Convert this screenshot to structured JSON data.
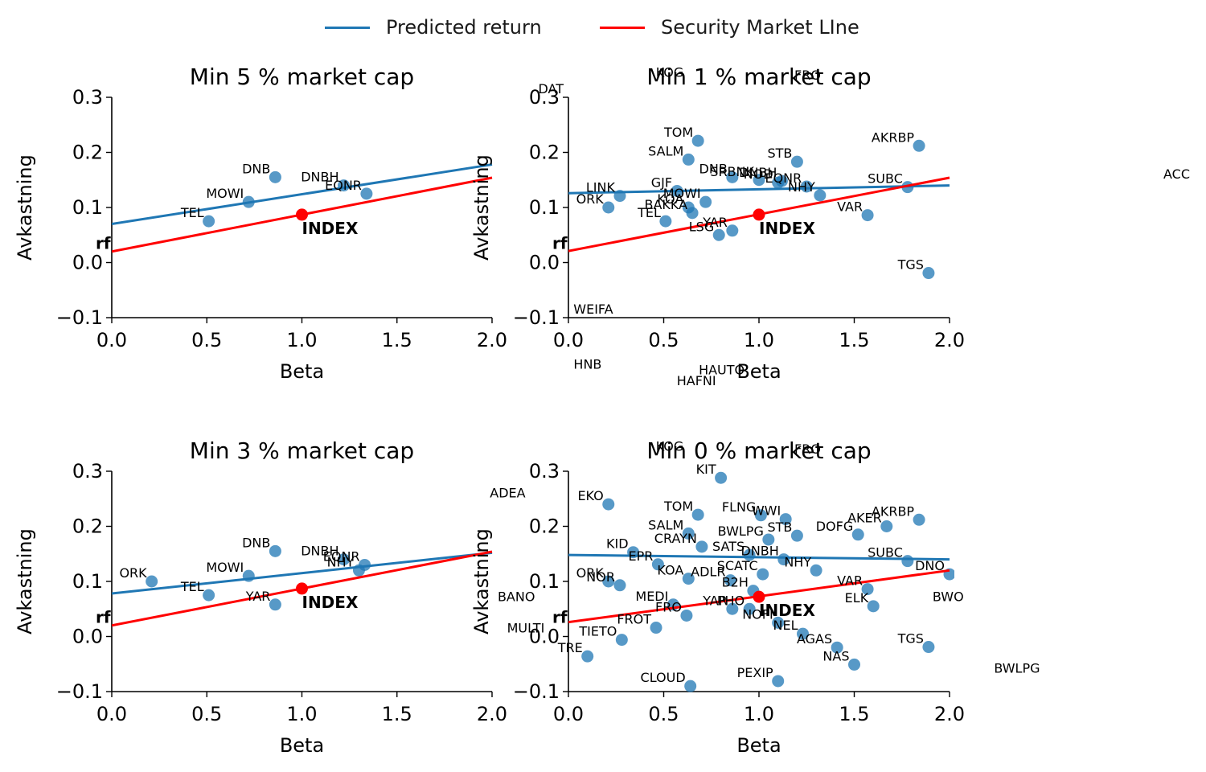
{
  "legend": {
    "predicted_label": "Predicted return",
    "predicted_color": "#1f77b4",
    "sml_label": "Security Market LIne",
    "sml_color": "#ff0000"
  },
  "chart_data": [
    {
      "type": "scatter",
      "title": "Min 5 % market cap",
      "xlabel": "Beta",
      "ylabel": "Avkastning",
      "xlim": [
        0,
        2
      ],
      "ylim": [
        -0.1,
        0.3
      ],
      "xticks": [
        "0.0",
        "0.5",
        "1.0",
        "1.5",
        "2.0"
      ],
      "yticks": [
        "−0.1",
        "0.0",
        "0.1",
        "0.2",
        "0.3"
      ],
      "grid": false,
      "rf_label": "rf",
      "rf_value": 0.035,
      "index": {
        "label": "INDEX",
        "beta": 1.0,
        "ret": 0.087
      },
      "predicted_line": [
        0.07,
        0.178
      ],
      "sml_line": [
        0.02,
        0.154
      ],
      "points": [
        {
          "name": "DNB",
          "beta": 0.86,
          "ret": 0.155
        },
        {
          "name": "MOWI",
          "beta": 0.72,
          "ret": 0.11
        },
        {
          "name": "TEL",
          "beta": 0.51,
          "ret": 0.075
        },
        {
          "name": "DNBH",
          "beta": 1.22,
          "ret": 0.14
        },
        {
          "name": "EQNR",
          "beta": 1.34,
          "ret": 0.125
        }
      ]
    },
    {
      "type": "scatter",
      "title": "Min 1 % market cap",
      "xlabel": "Beta",
      "ylabel": "Avkastning",
      "xlim": [
        0,
        2
      ],
      "ylim": [
        -0.1,
        0.3
      ],
      "xticks": [
        "0.0",
        "0.5",
        "1.0",
        "1.5",
        "2.0"
      ],
      "yticks": [
        "−0.1",
        "0.0",
        "0.1",
        "0.2",
        "0.3"
      ],
      "grid": false,
      "rf_label": "rf",
      "rf_value": 0.035,
      "index": {
        "label": "INDEX",
        "beta": 1.0,
        "ret": 0.087
      },
      "predicted_line": [
        0.126,
        0.14
      ],
      "sml_line": [
        0.021,
        0.154
      ],
      "points": [
        {
          "name": "TOM",
          "beta": 0.68,
          "ret": 0.221
        },
        {
          "name": "SALM",
          "beta": 0.63,
          "ret": 0.187
        },
        {
          "name": "STB",
          "beta": 1.2,
          "ret": 0.183
        },
        {
          "name": "AKRBP",
          "beta": 1.84,
          "ret": 0.212
        },
        {
          "name": "DNB",
          "beta": 0.86,
          "ret": 0.155
        },
        {
          "name": "SRBNK",
          "beta": 1.0,
          "ret": 0.15
        },
        {
          "name": "DNBH",
          "beta": 1.12,
          "ret": 0.148
        },
        {
          "name": "NOD",
          "beta": 1.1,
          "ret": 0.145
        },
        {
          "name": "EQNR",
          "beta": 1.25,
          "ret": 0.138
        },
        {
          "name": "NHY",
          "beta": 1.32,
          "ret": 0.122
        },
        {
          "name": "SUBC",
          "beta": 1.78,
          "ret": 0.137
        },
        {
          "name": "GJF",
          "beta": 0.57,
          "ret": 0.13
        },
        {
          "name": "LINK",
          "beta": 0.27,
          "ret": 0.121
        },
        {
          "name": "MOWI",
          "beta": 0.72,
          "ret": 0.11
        },
        {
          "name": "ORK",
          "beta": 0.21,
          "ret": 0.1
        },
        {
          "name": "KOA",
          "beta": 0.63,
          "ret": 0.1
        },
        {
          "name": "BAKKA",
          "beta": 0.65,
          "ret": 0.09
        },
        {
          "name": "TEL",
          "beta": 0.51,
          "ret": 0.075
        },
        {
          "name": "YAR",
          "beta": 0.86,
          "ret": 0.058
        },
        {
          "name": "LSG",
          "beta": 0.79,
          "ret": 0.05
        },
        {
          "name": "VAR",
          "beta": 1.57,
          "ret": 0.086
        },
        {
          "name": "TGS",
          "beta": 1.89,
          "ret": -0.019
        }
      ],
      "clipped_labels": [
        {
          "name": "KOG",
          "beta": 0.63,
          "ret": 0.33
        },
        {
          "name": "FRO",
          "beta": 1.35,
          "ret": 0.325
        },
        {
          "name": "DAT",
          "beta": 0.0,
          "ret": 0.3
        },
        {
          "name": "ACC",
          "beta": 3.3,
          "ret": 0.145
        },
        {
          "name": "WEIFA",
          "beta": 0.26,
          "ret": -0.1
        },
        {
          "name": "HNB",
          "beta": 0.2,
          "ret": -0.2
        },
        {
          "name": "HAUTO",
          "beta": 0.95,
          "ret": -0.21
        },
        {
          "name": "HAFNI",
          "beta": 0.8,
          "ret": -0.23
        }
      ]
    },
    {
      "type": "scatter",
      "title": "Min 3 % market cap",
      "xlabel": "Beta",
      "ylabel": "Avkastning",
      "xlim": [
        0,
        2
      ],
      "ylim": [
        -0.1,
        0.3
      ],
      "xticks": [
        "0.0",
        "0.5",
        "1.0",
        "1.5",
        "2.0"
      ],
      "yticks": [
        "−0.1",
        "0.0",
        "0.1",
        "0.2",
        "0.3"
      ],
      "grid": false,
      "rf_label": "rf",
      "rf_value": 0.035,
      "index": {
        "label": "INDEX",
        "beta": 1.0,
        "ret": 0.087
      },
      "predicted_line": [
        0.078,
        0.152
      ],
      "sml_line": [
        0.02,
        0.154
      ],
      "points": [
        {
          "name": "DNB",
          "beta": 0.86,
          "ret": 0.155
        },
        {
          "name": "ORK",
          "beta": 0.21,
          "ret": 0.1
        },
        {
          "name": "MOWI",
          "beta": 0.72,
          "ret": 0.11
        },
        {
          "name": "TEL",
          "beta": 0.51,
          "ret": 0.075
        },
        {
          "name": "YAR",
          "beta": 0.86,
          "ret": 0.058
        },
        {
          "name": "DNBH",
          "beta": 1.22,
          "ret": 0.14
        },
        {
          "name": "EQNR",
          "beta": 1.33,
          "ret": 0.13
        },
        {
          "name": "NHY",
          "beta": 1.3,
          "ret": 0.12
        }
      ]
    },
    {
      "type": "scatter",
      "title": "Min 0 % market cap",
      "xlabel": "Beta",
      "ylabel": "Avkastning",
      "xlim": [
        0,
        2
      ],
      "ylim": [
        -0.1,
        0.3
      ],
      "xticks": [
        "0.0",
        "0.5",
        "1.0",
        "1.5",
        "2.0"
      ],
      "yticks": [
        "−0.1",
        "0.0",
        "0.1",
        "0.2",
        "0.3"
      ],
      "grid": false,
      "rf_label": "rf",
      "rf_value": 0.035,
      "index": {
        "label": "INDEX",
        "beta": 1.0,
        "ret": 0.072
      },
      "predicted_line": [
        0.148,
        0.14
      ],
      "sml_line": [
        0.026,
        0.12
      ],
      "points": [
        {
          "name": "KIT",
          "beta": 0.8,
          "ret": 0.288
        },
        {
          "name": "EKO",
          "beta": 0.21,
          "ret": 0.24
        },
        {
          "name": "TOM",
          "beta": 0.68,
          "ret": 0.221
        },
        {
          "name": "FLNG",
          "beta": 1.01,
          "ret": 0.22
        },
        {
          "name": "WWI",
          "beta": 1.14,
          "ret": 0.213
        },
        {
          "name": "AKRBP",
          "beta": 1.84,
          "ret": 0.212
        },
        {
          "name": "AKER",
          "beta": 1.67,
          "ret": 0.2
        },
        {
          "name": "SALM",
          "beta": 0.63,
          "ret": 0.187
        },
        {
          "name": "DOFG",
          "beta": 1.52,
          "ret": 0.185
        },
        {
          "name": "STB",
          "beta": 1.2,
          "ret": 0.183
        },
        {
          "name": "BWLPG",
          "beta": 1.05,
          "ret": 0.176
        },
        {
          "name": "CRAYN",
          "beta": 0.7,
          "ret": 0.163
        },
        {
          "name": "KID",
          "beta": 0.34,
          "ret": 0.153
        },
        {
          "name": "SATS",
          "beta": 0.95,
          "ret": 0.148
        },
        {
          "name": "DNBH",
          "beta": 1.13,
          "ret": 0.14
        },
        {
          "name": "SUBC",
          "beta": 1.78,
          "ret": 0.137
        },
        {
          "name": "EPR",
          "beta": 0.47,
          "ret": 0.131
        },
        {
          "name": "NHY",
          "beta": 1.3,
          "ret": 0.12
        },
        {
          "name": "SCATC",
          "beta": 1.02,
          "ret": 0.113
        },
        {
          "name": "ADLR",
          "beta": 0.85,
          "ret": 0.102
        },
        {
          "name": "KOA",
          "beta": 0.63,
          "ret": 0.105
        },
        {
          "name": "ORK",
          "beta": 0.21,
          "ret": 0.1
        },
        {
          "name": "NOR",
          "beta": 0.27,
          "ret": 0.093
        },
        {
          "name": "VAR",
          "beta": 1.57,
          "ret": 0.086
        },
        {
          "name": "B2H",
          "beta": 0.97,
          "ret": 0.083
        },
        {
          "name": "PHO",
          "beta": 0.95,
          "ret": 0.05
        },
        {
          "name": "ELK",
          "beta": 1.6,
          "ret": 0.055
        },
        {
          "name": "MEDI",
          "beta": 0.55,
          "ret": 0.058
        },
        {
          "name": "FRO",
          "beta": 0.62,
          "ret": 0.038
        },
        {
          "name": "YAR",
          "beta": 0.86,
          "ret": 0.05
        },
        {
          "name": "NOFI",
          "beta": 1.1,
          "ret": 0.025
        },
        {
          "name": "FROT",
          "beta": 0.46,
          "ret": 0.016
        },
        {
          "name": "NEL",
          "beta": 1.23,
          "ret": 0.005
        },
        {
          "name": "TIETO",
          "beta": 0.28,
          "ret": -0.006
        },
        {
          "name": "AGAS",
          "beta": 1.41,
          "ret": -0.02
        },
        {
          "name": "TGS",
          "beta": 1.89,
          "ret": -0.019
        },
        {
          "name": "NAS",
          "beta": 1.5,
          "ret": -0.051
        },
        {
          "name": "TRE",
          "beta": 0.1,
          "ret": -0.036
        },
        {
          "name": "PEXIP",
          "beta": 1.1,
          "ret": -0.081
        },
        {
          "name": "CLOUD",
          "beta": 0.64,
          "ret": -0.09
        },
        {
          "name": "DNO",
          "beta": 2.0,
          "ret": 0.113
        }
      ],
      "clipped_labels": [
        {
          "name": "KOG",
          "beta": 0.63,
          "ret": 0.33
        },
        {
          "name": "FRO",
          "beta": 1.35,
          "ret": 0.325
        },
        {
          "name": "ADEA",
          "beta": -0.2,
          "ret": 0.245
        },
        {
          "name": "BANO",
          "beta": -0.15,
          "ret": 0.057
        },
        {
          "name": "MULTI",
          "beta": -0.1,
          "ret": 0.0
        },
        {
          "name": "BWO",
          "beta": 2.1,
          "ret": 0.057
        },
        {
          "name": "BWLPG",
          "beta": 2.5,
          "ret": -0.073
        }
      ]
    }
  ]
}
